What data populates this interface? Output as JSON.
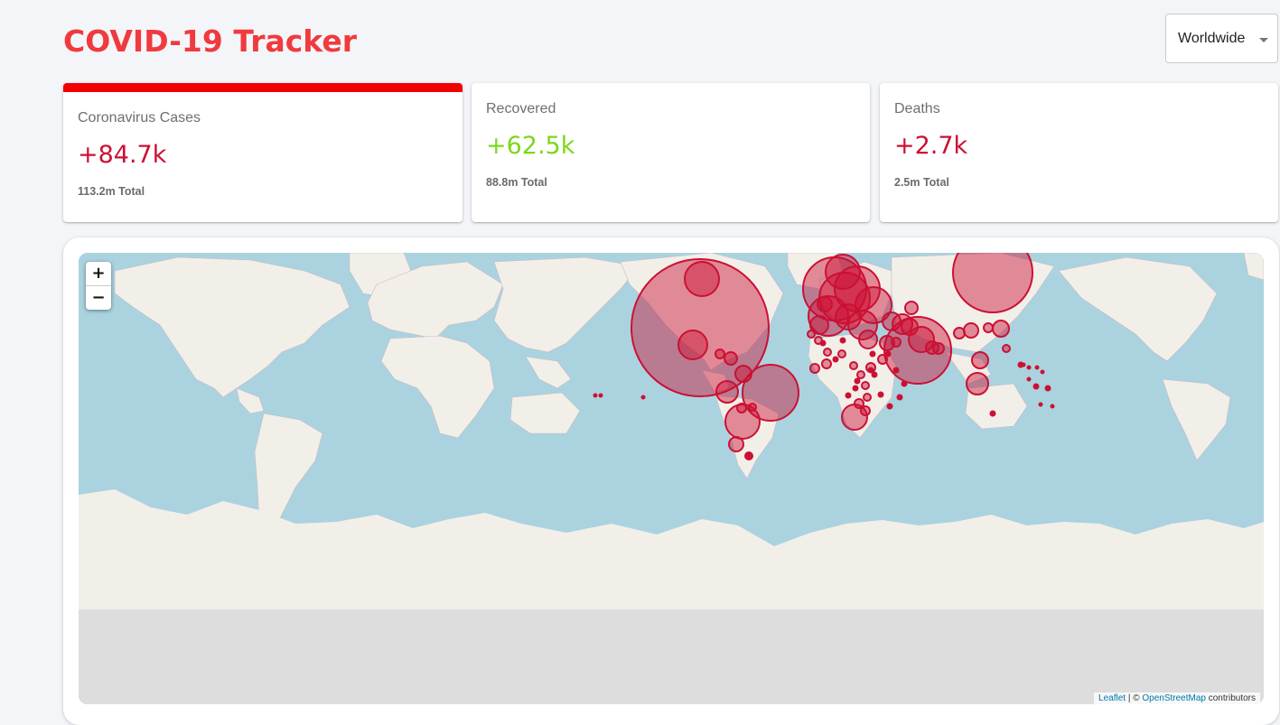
{
  "app": {
    "title": "COVID-19 Tracker"
  },
  "country_select": {
    "selected": "Worldwide"
  },
  "stats": {
    "cases": {
      "title": "Coronavirus Cases",
      "today": "+84.7k",
      "total": "113.2m Total",
      "active": true
    },
    "recovered": {
      "title": "Recovered",
      "today": "+62.5k",
      "total": "88.8m Total",
      "active": false
    },
    "deaths": {
      "title": "Deaths",
      "today": "+2.7k",
      "total": "2.5m Total",
      "active": false
    }
  },
  "map": {
    "zoom_in": "+",
    "zoom_out": "−",
    "attribution": {
      "leaflet": "Leaflet",
      "separator": " | © ",
      "osm": "OpenStreetMap",
      "suffix": " contributors"
    }
  },
  "colors": {
    "title": "#f03a3e",
    "active_bar": "#f10000",
    "cases": "#cc1034",
    "recovered": "#7dd71d",
    "deaths": "#cc1034",
    "water": "#aad3df",
    "land": "#f2efe9"
  }
}
